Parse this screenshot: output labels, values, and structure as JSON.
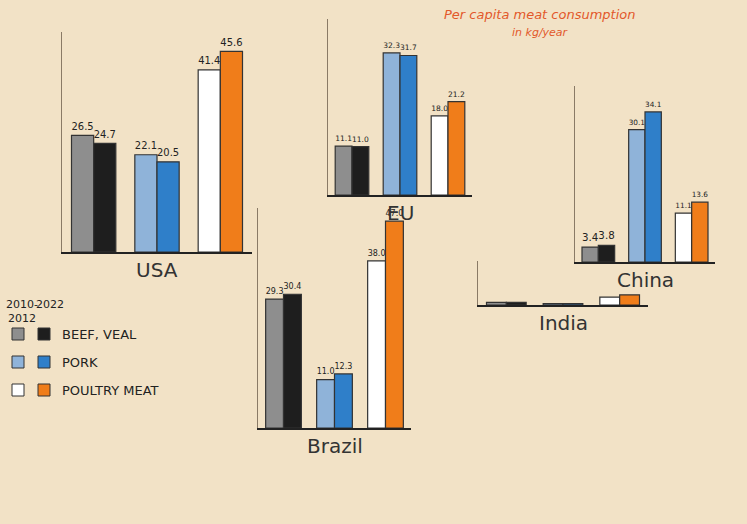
{
  "title": "Per capita meat consumption",
  "subtitle": "in kg/year",
  "legend": "lower left",
  "chart_data": [
    {
      "type": "bar",
      "title": "USA",
      "categories": [
        "BEEF, VEAL",
        "PORK",
        "POULTRY MEAT"
      ],
      "series": [
        {
          "name": "2010-2012",
          "colors": [
            "#8e8e8e",
            "#8fb3d9",
            "#ffffff"
          ],
          "values": [
            26.5,
            22.1,
            41.4
          ]
        },
        {
          "name": "2022",
          "colors": [
            "#1e1e1e",
            "#2f7fc9",
            "#f07d1a"
          ],
          "values": [
            24.7,
            20.5,
            45.6
          ]
        }
      ],
      "ylim": [
        0,
        50
      ],
      "grid": false,
      "data_labels": true,
      "tick_labels": false
    },
    {
      "type": "bar",
      "title": "EU",
      "categories": [
        "BEEF, VEAL",
        "PORK",
        "POULTRY MEAT"
      ],
      "series": [
        {
          "name": "2010-2012",
          "colors": [
            "#8e8e8e",
            "#8fb3d9",
            "#ffffff"
          ],
          "values": [
            11.1,
            32.3,
            18.0
          ]
        },
        {
          "name": "2022",
          "colors": [
            "#1e1e1e",
            "#2f7fc9",
            "#f07d1a"
          ],
          "values": [
            11.0,
            31.7,
            21.2
          ]
        }
      ],
      "ylim": [
        0,
        40
      ],
      "grid": false,
      "data_labels": true,
      "tick_labels": false
    },
    {
      "type": "bar",
      "title": "China",
      "categories": [
        "BEEF, VEAL",
        "PORK",
        "POULTRY MEAT"
      ],
      "series": [
        {
          "name": "2010-2012",
          "colors": [
            "#8e8e8e",
            "#8fb3d9",
            "#ffffff"
          ],
          "values": [
            3.4,
            30.1,
            11.1
          ]
        },
        {
          "name": "2022",
          "colors": [
            "#1e1e1e",
            "#2f7fc9",
            "#f07d1a"
          ],
          "values": [
            3.8,
            34.1,
            13.6
          ]
        }
      ],
      "ylim": [
        0,
        40
      ],
      "grid": false,
      "data_labels": true,
      "tick_labels": false
    },
    {
      "type": "bar",
      "title": "India",
      "categories": [
        "BEEF, VEAL",
        "PORK",
        "POULTRY MEAT"
      ],
      "series": [
        {
          "name": "2010-2012",
          "colors": [
            "#8e8e8e",
            "#8fb3d9",
            "#ffffff"
          ],
          "values": [
            0.6,
            0.3,
            1.8
          ]
        },
        {
          "name": "2022",
          "colors": [
            "#1e1e1e",
            "#2f7fc9",
            "#f07d1a"
          ],
          "values": [
            0.6,
            0.3,
            2.3
          ]
        }
      ],
      "ylim": [
        0,
        10
      ],
      "grid": false,
      "data_labels": false,
      "tick_labels": false
    },
    {
      "type": "bar",
      "title": "Brazil",
      "categories": [
        "BEEF, VEAL",
        "PORK",
        "POULTRY MEAT"
      ],
      "series": [
        {
          "name": "2010-2012",
          "colors": [
            "#8e8e8e",
            "#8fb3d9",
            "#ffffff"
          ],
          "values": [
            29.3,
            11.0,
            38.0
          ]
        },
        {
          "name": "2022",
          "colors": [
            "#1e1e1e",
            "#2f7fc9",
            "#f07d1a"
          ],
          "values": [
            30.4,
            12.3,
            47.0
          ]
        }
      ],
      "ylim": [
        0,
        50
      ],
      "grid": false,
      "data_labels": true,
      "tick_labels": false
    }
  ]
}
